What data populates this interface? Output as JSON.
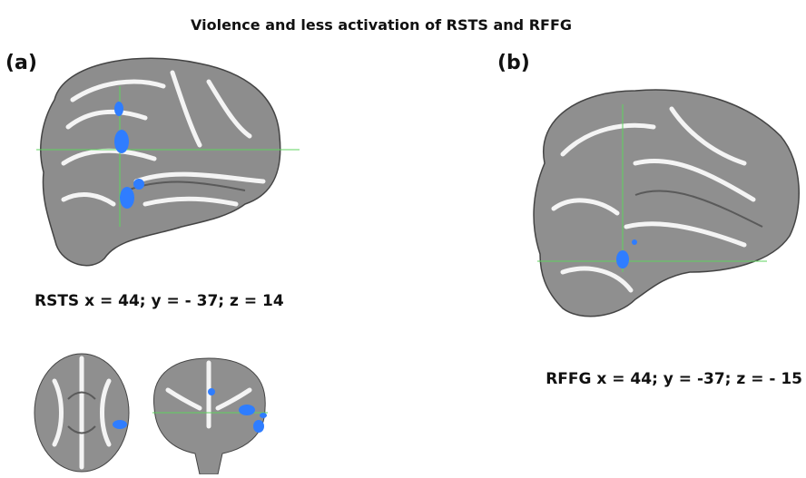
{
  "title": "Violence and less activation of RSTS and RFFG",
  "panels": [
    {
      "label": "(a)",
      "caption": "RSTS x = 44; y = - 37; z = 14"
    },
    {
      "label": "(b)",
      "caption": "RFFG x = 44; y = -37; z = - 15"
    }
  ]
}
